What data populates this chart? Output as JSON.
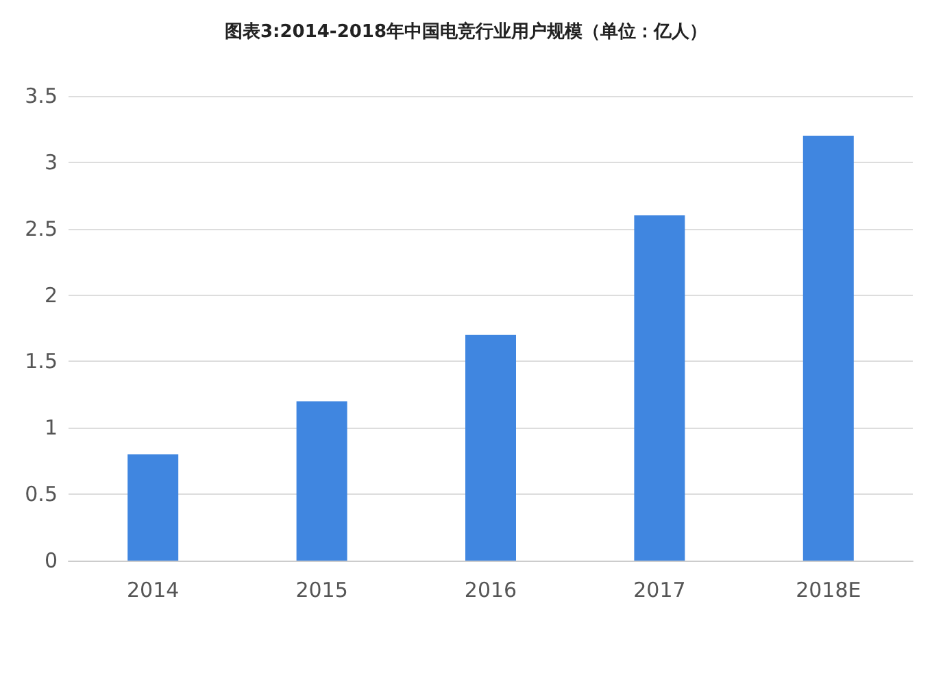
{
  "chart_data": {
    "type": "bar",
    "title": "图表3:2014-2018年中国电竞行业用户规模（单位：亿人）",
    "categories": [
      "2014",
      "2015",
      "2016",
      "2017",
      "2018E"
    ],
    "values": [
      0.8,
      1.2,
      1.7,
      2.6,
      3.2
    ],
    "color": "#4086e0",
    "ylim": [
      0,
      3.5
    ],
    "yticks": [
      0,
      0.5,
      1,
      1.5,
      2,
      2.5,
      3,
      3.5
    ],
    "grid": "y"
  }
}
